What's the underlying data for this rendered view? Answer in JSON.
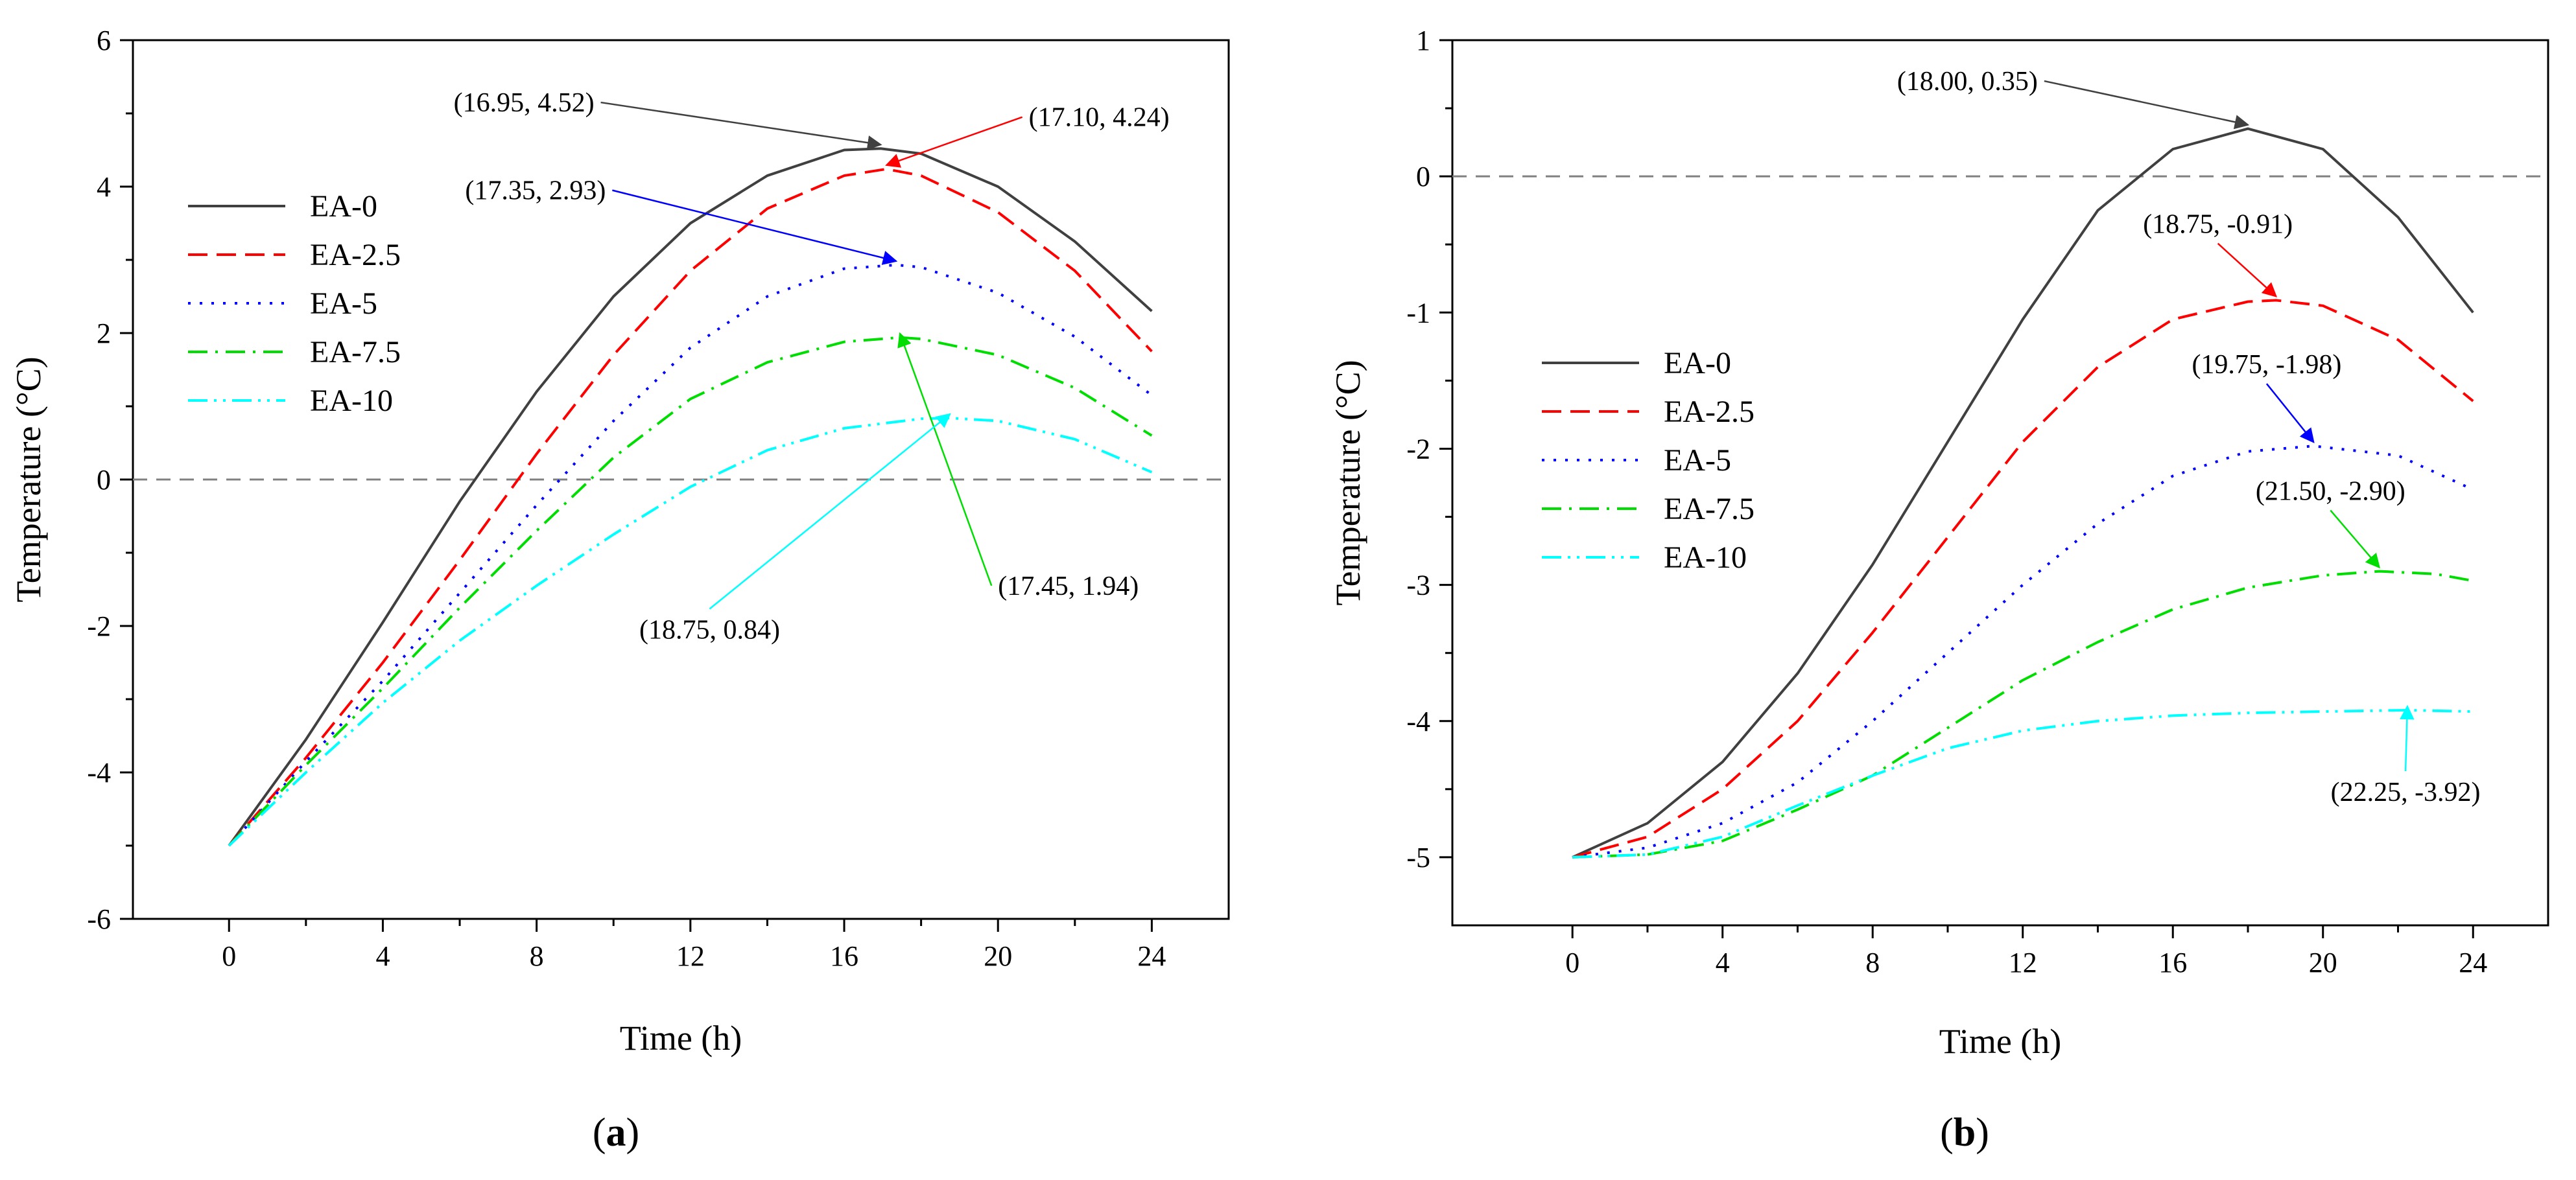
{
  "chart_data": [
    {
      "type": "line",
      "panel_label": "a",
      "xlabel": "Time (h)",
      "ylabel": "Temperature (°C)",
      "xlim": [
        -2.5,
        26
      ],
      "ylim": [
        -6,
        6
      ],
      "xticks": [
        0,
        4,
        8,
        12,
        16,
        20,
        24
      ],
      "yticks": [
        -6,
        -4,
        -2,
        0,
        2,
        4,
        6
      ],
      "reference_line": 0,
      "legend_position": "upper-left",
      "series": [
        {
          "name": "EA-0",
          "color": "#404040",
          "dash": "solid",
          "x": [
            0,
            2,
            4,
            6,
            8,
            10,
            12,
            14,
            16,
            16.95,
            18,
            20,
            22,
            24
          ],
          "y": [
            -5,
            -3.55,
            -1.95,
            -0.3,
            1.2,
            2.5,
            3.5,
            4.15,
            4.5,
            4.52,
            4.45,
            4.0,
            3.25,
            2.3
          ]
        },
        {
          "name": "EA-2.5",
          "color": "#ff0000",
          "dash": "dash",
          "x": [
            0,
            2,
            4,
            6,
            8,
            10,
            12,
            14,
            16,
            17.1,
            18,
            20,
            22,
            24
          ],
          "y": [
            -5,
            -3.8,
            -2.5,
            -1.1,
            0.35,
            1.7,
            2.85,
            3.7,
            4.15,
            4.24,
            4.15,
            3.65,
            2.85,
            1.75
          ]
        },
        {
          "name": "EA-5",
          "color": "#0000ff",
          "dash": "dot",
          "x": [
            0,
            2,
            4,
            6,
            8,
            10,
            12,
            14,
            16,
            17.35,
            18,
            20,
            22,
            24
          ],
          "y": [
            -5,
            -3.85,
            -2.75,
            -1.55,
            -0.35,
            0.8,
            1.8,
            2.5,
            2.88,
            2.93,
            2.9,
            2.55,
            1.95,
            1.15
          ]
        },
        {
          "name": "EA-7.5",
          "color": "#00dd00",
          "dash": "dashdot",
          "x": [
            0,
            2,
            4,
            6,
            8,
            10,
            12,
            14,
            16,
            17.45,
            18,
            20,
            22,
            24
          ],
          "y": [
            -5,
            -3.9,
            -2.85,
            -1.75,
            -0.7,
            0.3,
            1.1,
            1.6,
            1.88,
            1.94,
            1.92,
            1.7,
            1.25,
            0.6
          ]
        },
        {
          "name": "EA-10",
          "color": "#00ffff",
          "dash": "dashdotdot",
          "x": [
            0,
            2,
            4,
            6,
            8,
            10,
            12,
            14,
            16,
            18,
            18.75,
            20,
            22,
            24
          ],
          "y": [
            -5,
            -4.0,
            -3.05,
            -2.2,
            -1.45,
            -0.75,
            -0.1,
            0.4,
            0.7,
            0.83,
            0.84,
            0.8,
            0.55,
            0.1
          ]
        }
      ],
      "annotations": [
        {
          "text": "(16.95, 4.52)",
          "color": "#404040",
          "point": [
            16.95,
            4.52
          ],
          "label_at": [
            9.5,
            5.15
          ],
          "anchor": "end"
        },
        {
          "text": "(17.10, 4.24)",
          "color": "#ff0000",
          "point": [
            17.1,
            4.24
          ],
          "label_at": [
            20.8,
            4.95
          ],
          "anchor": "start"
        },
        {
          "text": "(17.35, 2.93)",
          "color": "#0000ff",
          "point": [
            17.35,
            2.93
          ],
          "label_at": [
            9.8,
            3.95
          ],
          "anchor": "end"
        },
        {
          "text": "(17.45, 1.94)",
          "color": "#00dd00",
          "point": [
            17.45,
            1.94
          ],
          "label_at": [
            20.0,
            -1.45
          ],
          "anchor": "start"
        },
        {
          "text": "(18.75, 0.84)",
          "color": "#00ffff",
          "point": [
            18.75,
            0.84
          ],
          "label_at": [
            12.5,
            -2.05
          ],
          "anchor": "middle"
        }
      ]
    },
    {
      "type": "line",
      "panel_label": "b",
      "xlabel": "Time (h)",
      "ylabel": "Temperature (°C)",
      "xlim": [
        -3.2,
        26
      ],
      "ylim": [
        -5.5,
        1
      ],
      "xticks": [
        0,
        4,
        8,
        12,
        16,
        20,
        24
      ],
      "yticks": [
        -5,
        -4,
        -3,
        -2,
        -1,
        0,
        1
      ],
      "reference_line": 0,
      "legend_position": "middle-left",
      "series": [
        {
          "name": "EA-0",
          "color": "#404040",
          "dash": "solid",
          "x": [
            0,
            2,
            4,
            6,
            8,
            10,
            12,
            14,
            16,
            18,
            20,
            22,
            24
          ],
          "y": [
            -5,
            -4.75,
            -4.3,
            -3.65,
            -2.85,
            -1.95,
            -1.05,
            -0.25,
            0.2,
            0.35,
            0.2,
            -0.3,
            -1.0
          ]
        },
        {
          "name": "EA-2.5",
          "color": "#ff0000",
          "dash": "dash",
          "x": [
            0,
            2,
            4,
            6,
            8,
            10,
            12,
            14,
            16,
            18,
            18.75,
            20,
            22,
            24
          ],
          "y": [
            -5,
            -4.85,
            -4.5,
            -4.0,
            -3.35,
            -2.65,
            -1.95,
            -1.4,
            -1.05,
            -0.92,
            -0.91,
            -0.95,
            -1.2,
            -1.65
          ]
        },
        {
          "name": "EA-5",
          "color": "#0000ff",
          "dash": "dot",
          "x": [
            0,
            2,
            4,
            6,
            8,
            10,
            12,
            14,
            16,
            18,
            19.75,
            22,
            24
          ],
          "y": [
            -5,
            -4.93,
            -4.75,
            -4.45,
            -4.0,
            -3.5,
            -3.0,
            -2.55,
            -2.2,
            -2.02,
            -1.98,
            -2.05,
            -2.3
          ]
        },
        {
          "name": "EA-7.5",
          "color": "#00dd00",
          "dash": "dashdot",
          "x": [
            0,
            2,
            4,
            6,
            8,
            10,
            12,
            14,
            16,
            18,
            20,
            21.5,
            23,
            24
          ],
          "y": [
            -5,
            -4.98,
            -4.88,
            -4.65,
            -4.4,
            -4.05,
            -3.7,
            -3.42,
            -3.18,
            -3.02,
            -2.93,
            -2.9,
            -2.92,
            -2.97
          ]
        },
        {
          "name": "EA-10",
          "color": "#00ffff",
          "dash": "dashdotdot",
          "x": [
            0,
            2,
            4,
            6,
            8,
            10,
            12,
            14,
            16,
            18,
            20,
            22.25,
            24
          ],
          "y": [
            -5,
            -4.98,
            -4.85,
            -4.62,
            -4.4,
            -4.2,
            -4.07,
            -4.0,
            -3.96,
            -3.94,
            -3.93,
            -3.92,
            -3.93
          ]
        }
      ],
      "annotations": [
        {
          "text": "(18.00, 0.35)",
          "color": "#404040",
          "point": [
            18.0,
            0.35
          ],
          "label_at": [
            12.4,
            0.7
          ],
          "anchor": "end"
        },
        {
          "text": "(18.75, -0.91)",
          "color": "#ff0000",
          "point": [
            18.75,
            -0.91
          ],
          "label_at": [
            17.2,
            -0.35
          ],
          "anchor": "middle"
        },
        {
          "text": "(19.75, -1.98)",
          "color": "#0000ff",
          "point": [
            19.75,
            -1.98
          ],
          "label_at": [
            18.5,
            -1.38
          ],
          "anchor": "middle"
        },
        {
          "text": "(21.50, -2.90)",
          "color": "#00dd00",
          "point": [
            21.5,
            -2.9
          ],
          "label_at": [
            20.2,
            -2.31
          ],
          "anchor": "middle"
        },
        {
          "text": "(22.25, -3.92)",
          "color": "#00ffff",
          "point": [
            22.25,
            -3.92
          ],
          "label_at": [
            22.2,
            -4.52
          ],
          "anchor": "middle"
        }
      ]
    }
  ]
}
